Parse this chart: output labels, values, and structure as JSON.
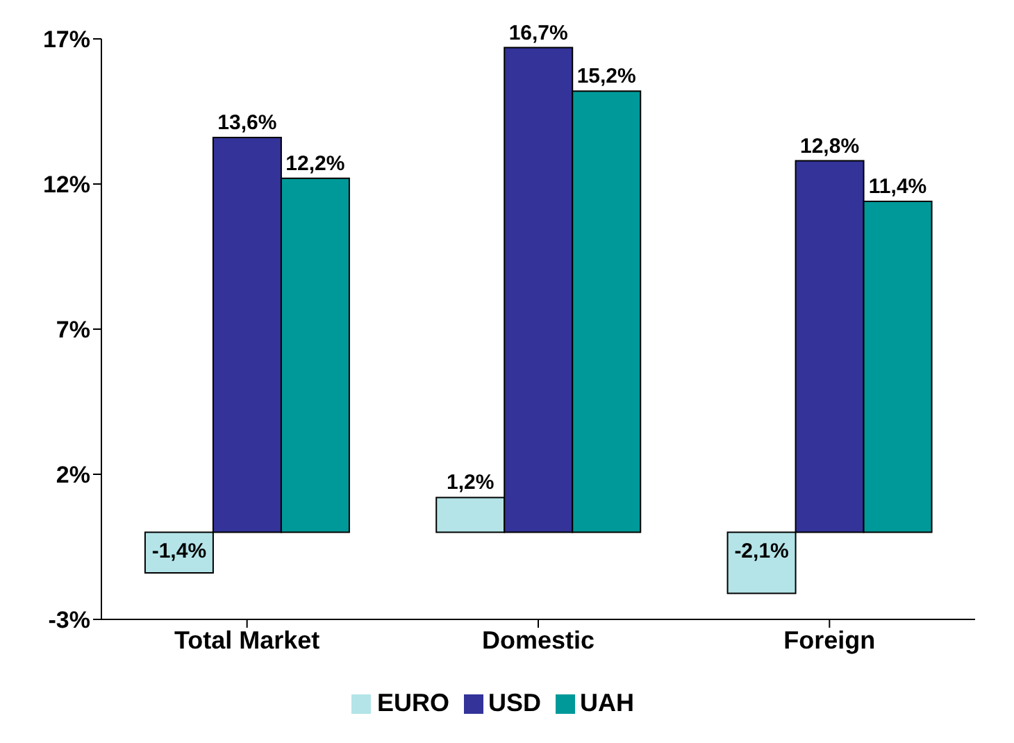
{
  "chart_data": {
    "type": "bar",
    "categories": [
      "Total Market",
      "Domestic",
      "Foreign"
    ],
    "series": [
      {
        "name": "EURO",
        "color": "#b4e4e8",
        "values": [
          -1.4,
          1.2,
          -2.1
        ],
        "value_labels": [
          "-1,4%",
          "1,2%",
          "-2,1%"
        ]
      },
      {
        "name": "USD",
        "color": "#333399",
        "values": [
          13.6,
          16.7,
          12.8
        ],
        "value_labels": [
          "13,6%",
          "16,7%",
          "12,8%"
        ]
      },
      {
        "name": "UAH",
        "color": "#009999",
        "values": [
          12.2,
          15.2,
          11.4
        ],
        "value_labels": [
          "12,2%",
          "15,2%",
          "11,4%"
        ]
      }
    ],
    "ylim": [
      -3,
      17
    ],
    "yticks": [
      {
        "value": -3,
        "label": "-3%"
      },
      {
        "value": 2,
        "label": "2%"
      },
      {
        "value": 7,
        "label": "7%"
      },
      {
        "value": 12,
        "label": "12%"
      },
      {
        "value": 17,
        "label": "17%"
      }
    ],
    "grid": false,
    "legend": "bottom"
  }
}
